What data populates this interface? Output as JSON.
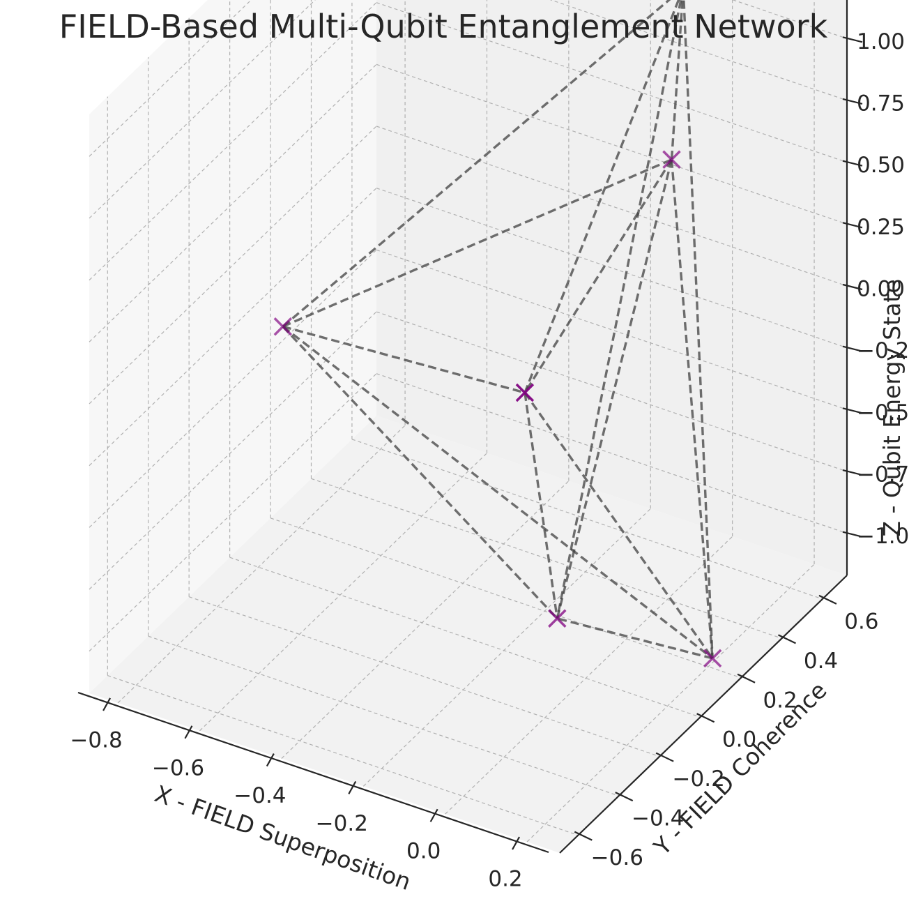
{
  "chart_data": {
    "type": "scatter3d",
    "title": "FIELD-Based Multi-Qubit Entanglement Network",
    "xlabel": "X - FIELD Superposition",
    "ylabel": "Y - FIELD Coherence",
    "zlabel": "Z - Qubit Energy State",
    "x_ticks": [
      "−0.8",
      "−0.6",
      "−0.4",
      "−0.2",
      "0.0",
      "0.2"
    ],
    "y_ticks": [
      "−0.6",
      "−0.4",
      "−0.2",
      "0.0",
      "0.2",
      "0.4",
      "0.6"
    ],
    "z_ticks": [
      "−1.00",
      "−0.75",
      "−0.50",
      "−0.25",
      "0.00",
      "0.25",
      "0.50",
      "0.75",
      "1.00"
    ],
    "grid": true,
    "marker": "x",
    "marker_color": "#800080",
    "edge_color": "#404040",
    "edge_style": "dashed",
    "nodes": [
      {
        "x": -0.78,
        "y": 0.08,
        "z": -0.25
      },
      {
        "x": -0.12,
        "y": 0.72,
        "z": 0.98
      },
      {
        "x": 0.18,
        "y": 0.06,
        "z": 0.98
      },
      {
        "x": 0.11,
        "y": -0.52,
        "z": 0.46
      },
      {
        "x": 0.28,
        "y": 0.06,
        "z": -0.98
      },
      {
        "x": -0.02,
        "y": -0.1,
        "z": -0.86
      }
    ],
    "edges": [
      [
        0,
        1
      ],
      [
        0,
        2
      ],
      [
        0,
        3
      ],
      [
        0,
        4
      ],
      [
        0,
        5
      ],
      [
        1,
        2
      ],
      [
        1,
        3
      ],
      [
        1,
        4
      ],
      [
        1,
        5
      ],
      [
        2,
        3
      ],
      [
        2,
        4
      ],
      [
        2,
        5
      ],
      [
        3,
        4
      ],
      [
        3,
        5
      ],
      [
        4,
        5
      ]
    ]
  }
}
